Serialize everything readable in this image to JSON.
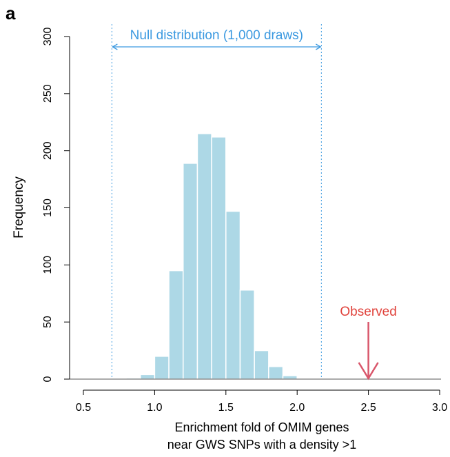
{
  "panel_label": "a",
  "colors": {
    "bar_fill": "#add8e6",
    "bar_stroke": "#ffffff",
    "null_range": "#3b99e0",
    "observed": "#e0413a",
    "arrow": "#d9566b",
    "axis": "#000000"
  },
  "chart_data": {
    "type": "bar",
    "histogram": true,
    "bin_width": 0.1,
    "bins": [
      {
        "x0": 0.8,
        "x1": 0.9,
        "count": 1
      },
      {
        "x0": 0.9,
        "x1": 1.0,
        "count": 4
      },
      {
        "x0": 1.0,
        "x1": 1.1,
        "count": 20
      },
      {
        "x0": 1.1,
        "x1": 1.2,
        "count": 95
      },
      {
        "x0": 1.2,
        "x1": 1.3,
        "count": 189
      },
      {
        "x0": 1.3,
        "x1": 1.4,
        "count": 215
      },
      {
        "x0": 1.4,
        "x1": 1.5,
        "count": 212
      },
      {
        "x0": 1.5,
        "x1": 1.6,
        "count": 147
      },
      {
        "x0": 1.6,
        "x1": 1.7,
        "count": 78
      },
      {
        "x0": 1.7,
        "x1": 1.8,
        "count": 25
      },
      {
        "x0": 1.8,
        "x1": 1.9,
        "count": 11
      },
      {
        "x0": 1.9,
        "x1": 2.0,
        "count": 3
      }
    ],
    "xlabel_line1": "Enrichment fold of OMIM genes",
    "xlabel_line2": "near GWS SNPs with a density >1",
    "ylabel": "Frequency",
    "xlim": [
      0.5,
      3.0
    ],
    "ylim": [
      0,
      300
    ],
    "xticks": [
      "0.5",
      "1.0",
      "1.5",
      "2.0",
      "2.5",
      "3.0"
    ],
    "xtick_values": [
      0.5,
      1.0,
      1.5,
      2.0,
      2.5,
      3.0
    ],
    "yticks": [
      "0",
      "50",
      "100",
      "150",
      "200",
      "250",
      "300"
    ],
    "ytick_values": [
      0,
      50,
      100,
      150,
      200,
      250,
      300
    ],
    "null_range": {
      "label": "Null distribution (1,000 draws)",
      "x_min": 0.7,
      "x_max": 2.17
    },
    "observed": {
      "label": "Observed",
      "x": 2.5
    },
    "grid": false,
    "legend": "none"
  }
}
